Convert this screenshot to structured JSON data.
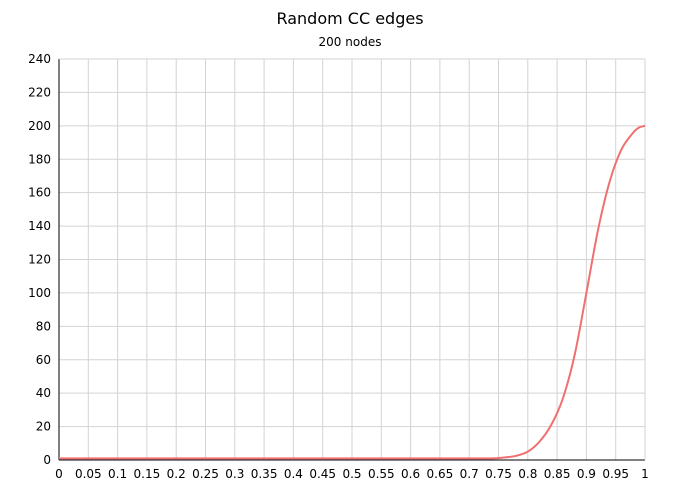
{
  "chart_data": {
    "type": "line",
    "title": "Random CC edges",
    "subtitle": "200 nodes",
    "xlabel": "",
    "ylabel": "",
    "xlim": [
      0,
      1
    ],
    "ylim": [
      0,
      240
    ],
    "x_ticks": [
      "0",
      "0.05",
      "0.1",
      "0.15",
      "0.2",
      "0.25",
      "0.3",
      "0.35",
      "0.4",
      "0.45",
      "0.5",
      "0.55",
      "0.6",
      "0.65",
      "0.7",
      "0.75",
      "0.8",
      "0.85",
      "0.9",
      "0.95",
      "1"
    ],
    "y_ticks": [
      "0",
      "20",
      "40",
      "60",
      "80",
      "100",
      "120",
      "140",
      "160",
      "180",
      "200",
      "220",
      "240"
    ],
    "grid": true,
    "legend": "none",
    "series": [
      {
        "color": "#f07070",
        "x": [
          0,
          0.1,
          0.2,
          0.3,
          0.4,
          0.5,
          0.6,
          0.7,
          0.74,
          0.76,
          0.78,
          0.8,
          0.82,
          0.84,
          0.86,
          0.88,
          0.9,
          0.92,
          0.94,
          0.96,
          0.98,
          0.99,
          1.0
        ],
        "y": [
          1,
          1,
          1,
          1,
          1,
          1,
          1,
          1,
          1,
          1.5,
          2.5,
          5,
          11,
          21,
          37,
          63,
          100,
          138,
          167,
          186,
          196,
          199,
          200
        ]
      }
    ]
  }
}
